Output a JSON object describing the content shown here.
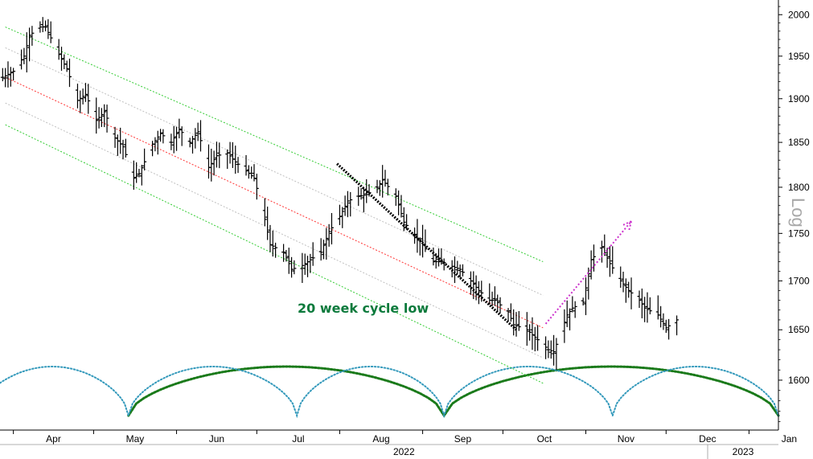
{
  "chart_data": {
    "type": "ohlc",
    "title": "",
    "scale": "log",
    "ylabel": "Log",
    "ylim": [
      1552,
      2018
    ],
    "y_ticks": [
      1600,
      1650,
      1700,
      1750,
      1800,
      1850,
      1900,
      1950,
      2000
    ],
    "x_months": [
      {
        "label": "Apr",
        "date": "2022-04-01"
      },
      {
        "label": "May",
        "date": "2022-05-01"
      },
      {
        "label": "Jun",
        "date": "2022-06-01"
      },
      {
        "label": "Jul",
        "date": "2022-07-01"
      },
      {
        "label": "Aug",
        "date": "2022-08-01"
      },
      {
        "label": "Sep",
        "date": "2022-09-01"
      },
      {
        "label": "Oct",
        "date": "2022-10-01"
      },
      {
        "label": "Nov",
        "date": "2022-11-01"
      },
      {
        "label": "Dec",
        "date": "2022-12-01"
      },
      {
        "label": "Jan",
        "date": "2023-01-01"
      }
    ],
    "x_years": [
      {
        "label": "2022",
        "date": "2022-08-01"
      },
      {
        "label": "2023",
        "date": "2023-01-01"
      }
    ],
    "xlim": [
      "2022-03-27",
      "2023-01-12"
    ],
    "price_path": [
      [
        "2022-03-28",
        1925
      ],
      [
        "2022-04-01",
        1932
      ],
      [
        "2022-04-05",
        1950
      ],
      [
        "2022-04-07",
        1975
      ],
      [
        "2022-04-11",
        1985
      ],
      [
        "2022-04-13",
        1985
      ],
      [
        "2022-04-18",
        1952
      ],
      [
        "2022-04-21",
        1935
      ],
      [
        "2022-04-25",
        1898
      ],
      [
        "2022-04-28",
        1905
      ],
      [
        "2022-05-02",
        1875
      ],
      [
        "2022-05-05",
        1885
      ],
      [
        "2022-05-09",
        1855
      ],
      [
        "2022-05-12",
        1845
      ],
      [
        "2022-05-16",
        1810
      ],
      [
        "2022-05-18",
        1815
      ],
      [
        "2022-05-23",
        1848
      ],
      [
        "2022-05-26",
        1860
      ],
      [
        "2022-05-30",
        1850
      ],
      [
        "2022-06-02",
        1865
      ],
      [
        "2022-06-06",
        1850
      ],
      [
        "2022-06-09",
        1862
      ],
      [
        "2022-06-13",
        1822
      ],
      [
        "2022-06-16",
        1835
      ],
      [
        "2022-06-20",
        1838
      ],
      [
        "2022-06-23",
        1828
      ],
      [
        "2022-06-27",
        1818
      ],
      [
        "2022-06-30",
        1810
      ],
      [
        "2022-07-04",
        1765
      ],
      [
        "2022-07-06",
        1738
      ],
      [
        "2022-07-11",
        1730
      ],
      [
        "2022-07-14",
        1712
      ],
      [
        "2022-07-18",
        1716
      ],
      [
        "2022-07-21",
        1722
      ],
      [
        "2022-07-25",
        1730
      ],
      [
        "2022-07-28",
        1752
      ],
      [
        "2022-08-01",
        1768
      ],
      [
        "2022-08-04",
        1785
      ],
      [
        "2022-08-08",
        1790
      ],
      [
        "2022-08-11",
        1792
      ],
      [
        "2022-08-15",
        1800
      ],
      [
        "2022-08-17",
        1808
      ],
      [
        "2022-08-22",
        1790
      ],
      [
        "2022-08-25",
        1762
      ],
      [
        "2022-08-29",
        1748
      ],
      [
        "2022-09-01",
        1738
      ],
      [
        "2022-09-05",
        1720
      ],
      [
        "2022-09-08",
        1720
      ],
      [
        "2022-09-12",
        1715
      ],
      [
        "2022-09-15",
        1712
      ],
      [
        "2022-09-19",
        1700
      ],
      [
        "2022-09-22",
        1690
      ],
      [
        "2022-09-26",
        1680
      ],
      [
        "2022-09-28",
        1680
      ],
      [
        "2022-10-03",
        1668
      ],
      [
        "2022-10-05",
        1655
      ],
      [
        "2022-10-10",
        1650
      ],
      [
        "2022-10-12",
        1645
      ],
      [
        "2022-10-14",
        1640
      ],
      [
        "2022-10-18",
        1630
      ],
      [
        "2022-10-20",
        1628
      ],
      [
        "2022-10-25",
        1665
      ],
      [
        "2022-10-27",
        1672
      ],
      [
        "2022-10-31",
        1678
      ],
      [
        "2022-11-03",
        1722
      ],
      [
        "2022-11-07",
        1735
      ],
      [
        "2022-11-10",
        1718
      ],
      [
        "2022-11-14",
        1700
      ],
      [
        "2022-11-17",
        1690
      ],
      [
        "2022-11-21",
        1680
      ],
      [
        "2022-11-23",
        1672
      ],
      [
        "2022-11-28",
        1665
      ],
      [
        "2022-12-01",
        1652
      ],
      [
        "2022-12-05",
        1660
      ]
    ],
    "channel": {
      "lines": [
        {
          "role": "upper",
          "color": "#33cc33",
          "points": [
            [
              "2022-03-29",
              1985
            ],
            [
              "2022-10-16",
              1720
            ]
          ]
        },
        {
          "role": "upper-inner",
          "color": "#c0c0c0",
          "points": [
            [
              "2022-03-29",
              1960
            ],
            [
              "2022-10-16",
              1685
            ]
          ]
        },
        {
          "role": "mid",
          "color": "#ff3333",
          "points": [
            [
              "2022-03-29",
              1925
            ],
            [
              "2022-10-16",
              1652
            ]
          ]
        },
        {
          "role": "lower-inner",
          "color": "#c0c0c0",
          "points": [
            [
              "2022-03-29",
              1895
            ],
            [
              "2022-10-16",
              1622
            ]
          ]
        },
        {
          "role": "lower",
          "color": "#33cc33",
          "points": [
            [
              "2022-03-29",
              1870
            ],
            [
              "2022-10-16",
              1597
            ]
          ]
        }
      ]
    },
    "downtrend_line": {
      "color": "#000000",
      "points": [
        [
          "2022-07-31",
          1826
        ],
        [
          "2022-10-06",
          1650
        ]
      ]
    },
    "projection_arrow": {
      "color": "#cc33cc",
      "points": [
        [
          "2022-10-17",
          1656
        ],
        [
          "2022-11-18",
          1763
        ]
      ]
    },
    "cycles": [
      {
        "name": "20 week",
        "color": "#1a7a1a",
        "lows": [
          "2022-05-14",
          "2022-09-09",
          "2023-01-12"
        ]
      },
      {
        "name": "10 week",
        "color": "#3399bb",
        "lows": [
          "2022-03-18",
          "2022-05-14",
          "2022-07-16",
          "2022-09-09",
          "2022-11-11",
          "2023-01-12"
        ]
      }
    ],
    "annotations": [
      {
        "text": "20 week cycle low",
        "color": "#0c7a3c"
      }
    ],
    "grid": false,
    "y_axis_side": "right"
  }
}
